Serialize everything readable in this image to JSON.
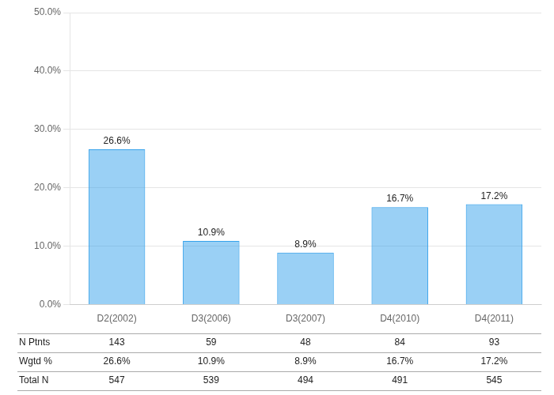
{
  "chart_data": {
    "type": "bar",
    "categories": [
      "D2(2002)",
      "D3(2006)",
      "D3(2007)",
      "D4(2010)",
      "D4(2011)"
    ],
    "values": [
      26.6,
      10.9,
      8.9,
      16.7,
      17.2
    ],
    "value_labels": [
      "26.6%",
      "10.9%",
      "8.9%",
      "16.7%",
      "17.2%"
    ],
    "data_labels": true,
    "ylim": [
      0,
      50
    ],
    "yticks": [
      {
        "value": 0,
        "label": "0.0%"
      },
      {
        "value": 10,
        "label": "10.0%"
      },
      {
        "value": 20,
        "label": "20.0%"
      },
      {
        "value": 30,
        "label": "30.0%"
      },
      {
        "value": 40,
        "label": "40.0%"
      },
      {
        "value": 50,
        "label": "50.0%"
      }
    ],
    "grid": true,
    "table": [
      {
        "name": "N Ptnts",
        "values": [
          143,
          59,
          48,
          84,
          93
        ]
      },
      {
        "name": "Wgtd %",
        "values": [
          26.6,
          10.9,
          8.9,
          16.7,
          17.2
        ],
        "value_labels": [
          "26.6%",
          "10.9%",
          "8.9%",
          "16.7%",
          "17.2%"
        ]
      },
      {
        "name": "Total N",
        "values": [
          547,
          539,
          494,
          491,
          545
        ]
      }
    ]
  }
}
